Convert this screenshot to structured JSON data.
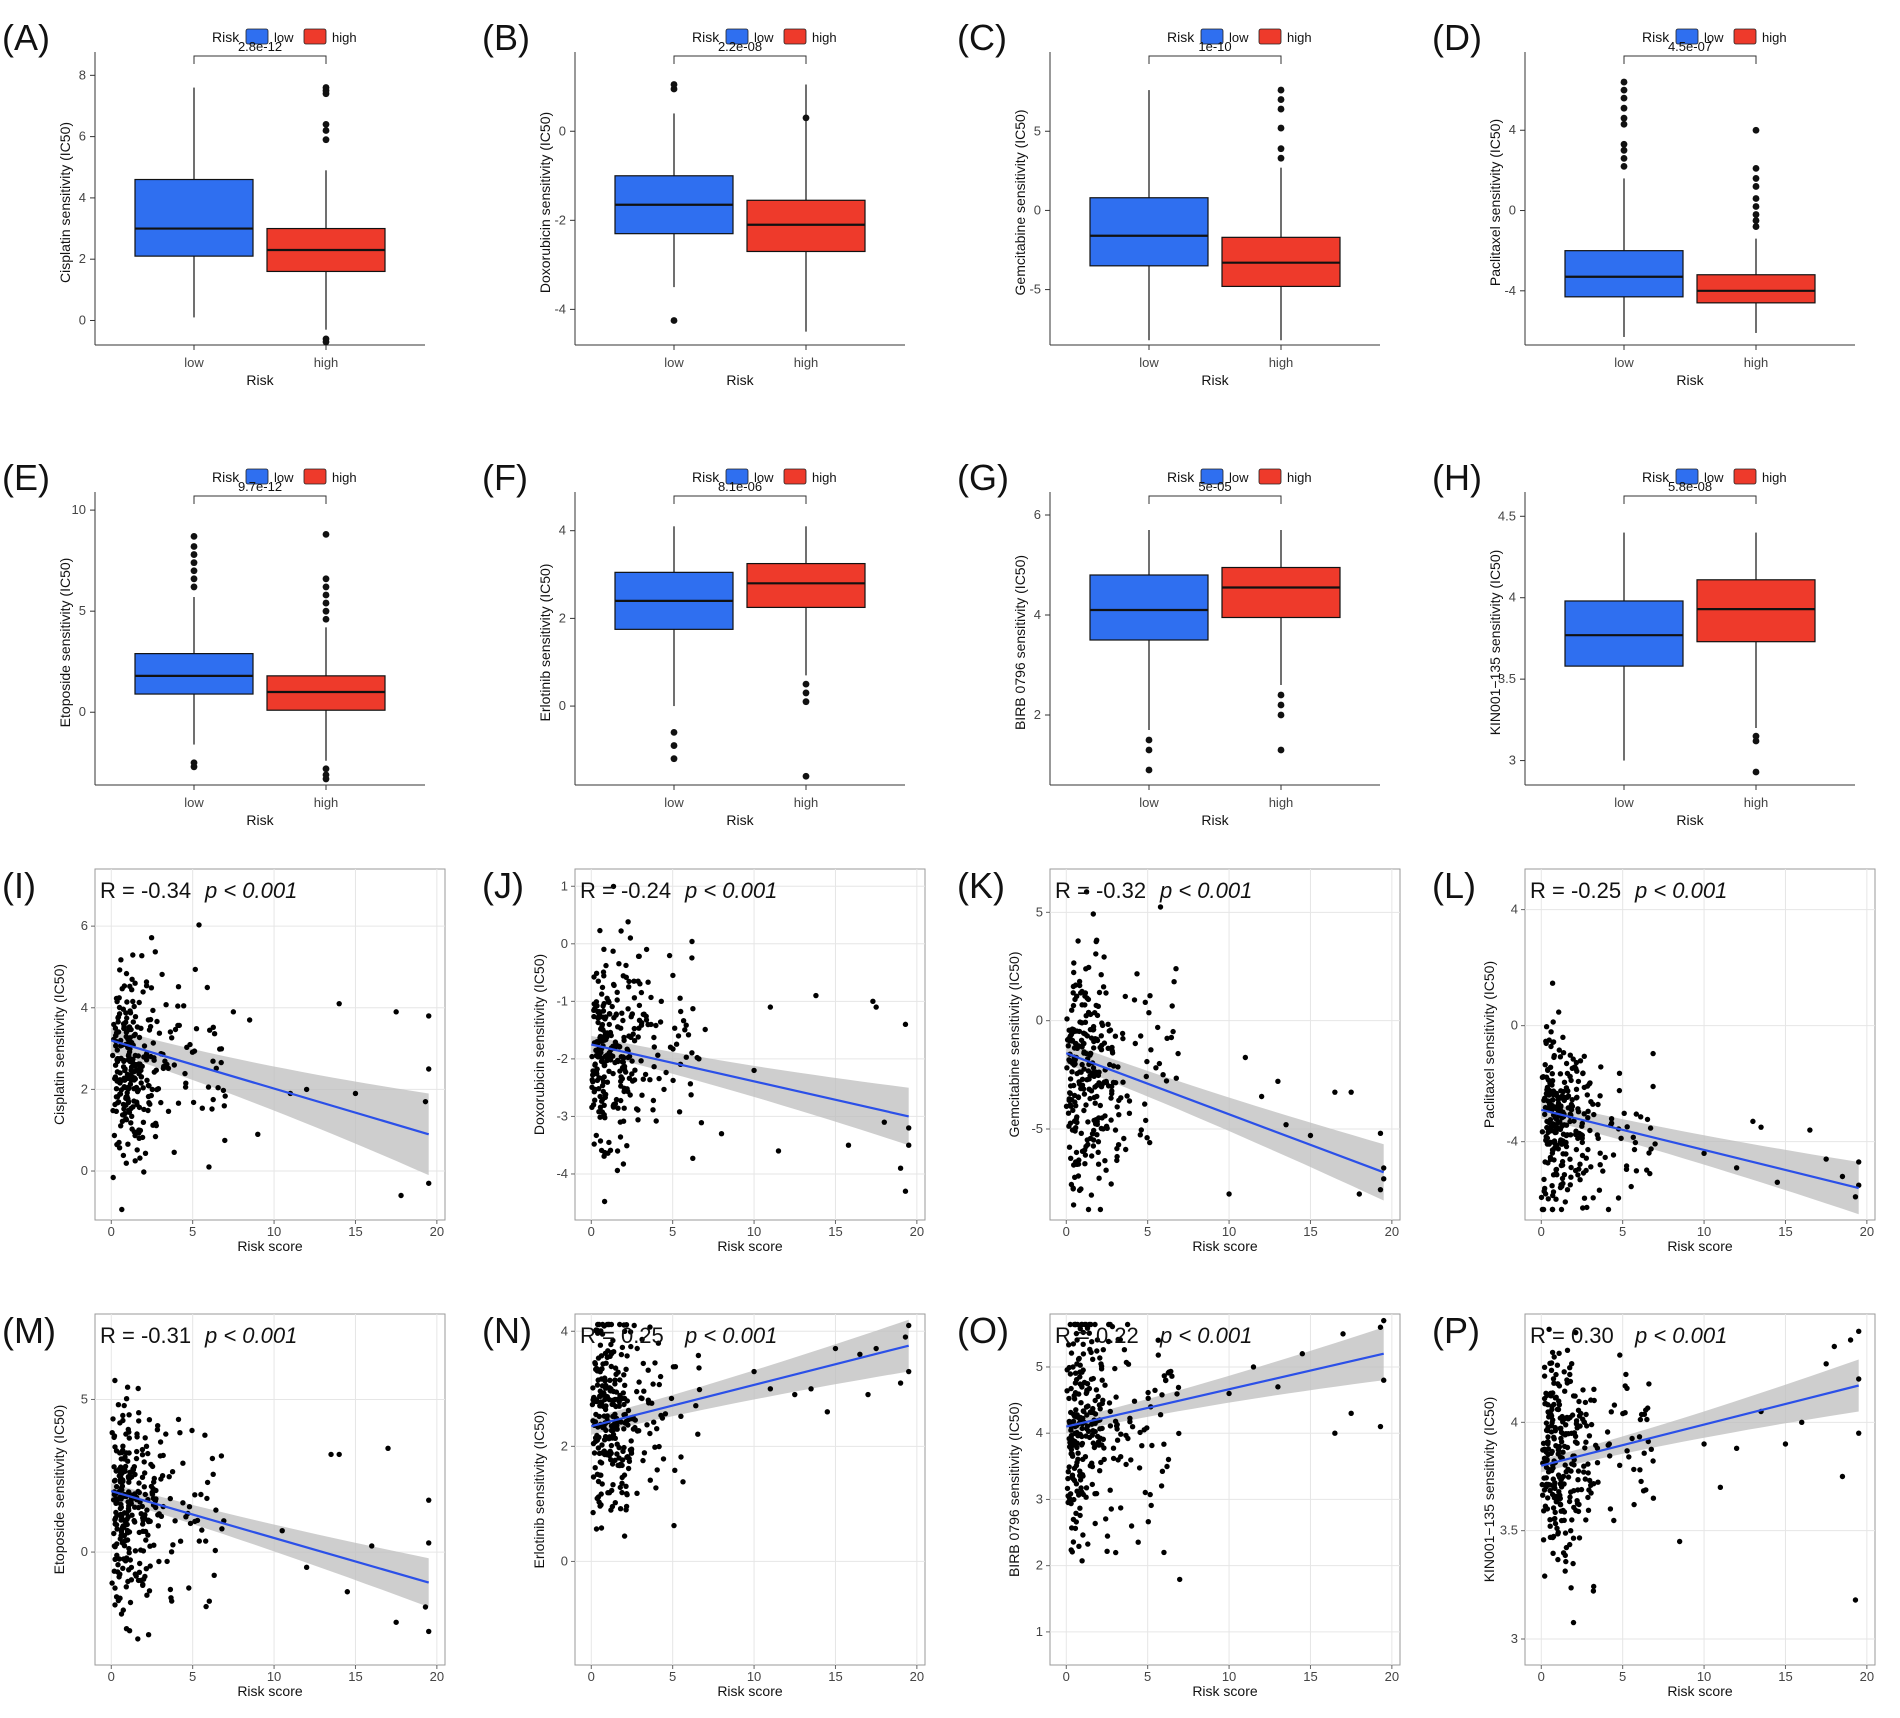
{
  "colors": {
    "low": "#2f6ff0",
    "high": "#ee3a2b",
    "regression_line": "#2b50e8",
    "confidence_band": "#bdbdbd",
    "point": "#000000",
    "grid": "#e6e6e6"
  },
  "chart_data": [
    {
      "id": "A",
      "label": "(A)",
      "type": "box",
      "legend": {
        "title": "Risk",
        "low": "low",
        "high": "high"
      },
      "xlabel": "Risk",
      "ylabel": "Cisplatin sensitivity (IC50)",
      "categories": [
        "low",
        "high"
      ],
      "ylim": [
        -0.8,
        8.5
      ],
      "yticks": [
        0,
        2,
        4,
        6,
        8
      ],
      "pvalue": "2.8e-12",
      "boxes": [
        {
          "name": "low",
          "q1": 2.1,
          "median": 3.0,
          "q3": 4.6,
          "whisker_low": 0.1,
          "whisker_high": 7.6,
          "outliers": []
        },
        {
          "name": "high",
          "q1": 1.6,
          "median": 2.3,
          "q3": 3.0,
          "whisker_low": -0.3,
          "whisker_high": 4.9,
          "outliers": [
            5.9,
            6.2,
            6.4,
            7.4,
            7.5,
            7.6,
            -0.6,
            -0.7
          ]
        }
      ]
    },
    {
      "id": "B",
      "label": "(B)",
      "type": "box",
      "legend": {
        "title": "Risk",
        "low": "low",
        "high": "high"
      },
      "xlabel": "Risk",
      "ylabel": "Doxorubicin sensitivity (IC50)",
      "categories": [
        "low",
        "high"
      ],
      "ylim": [
        -4.8,
        1.6
      ],
      "yticks": [
        -4,
        -2,
        0
      ],
      "pvalue": "2.2e-08",
      "boxes": [
        {
          "name": "low",
          "q1": -2.3,
          "median": -1.65,
          "q3": -1.0,
          "whisker_low": -3.5,
          "whisker_high": 0.4,
          "outliers": [
            0.95,
            1.05,
            -4.25
          ]
        },
        {
          "name": "high",
          "q1": -2.7,
          "median": -2.1,
          "q3": -1.55,
          "whisker_low": -4.5,
          "whisker_high": 1.05,
          "outliers": [
            0.3
          ]
        }
      ]
    },
    {
      "id": "C",
      "label": "(C)",
      "type": "box",
      "legend": {
        "title": "Risk",
        "low": "low",
        "high": "high"
      },
      "xlabel": "Risk",
      "ylabel": "Gemcitabine sensitivity (IC50)",
      "categories": [
        "low",
        "high"
      ],
      "ylim": [
        -8.5,
        9.5
      ],
      "yticks": [
        -5,
        0,
        5
      ],
      "pvalue": "1e-10",
      "boxes": [
        {
          "name": "low",
          "q1": -3.5,
          "median": -1.6,
          "q3": 0.8,
          "whisker_low": -8.2,
          "whisker_high": 7.6,
          "outliers": []
        },
        {
          "name": "high",
          "q1": -4.8,
          "median": -3.3,
          "q3": -1.7,
          "whisker_low": -8.2,
          "whisker_high": 2.7,
          "outliers": [
            3.3,
            3.9,
            5.2,
            6.4,
            7.0,
            7.6
          ]
        }
      ]
    },
    {
      "id": "D",
      "label": "(D)",
      "type": "box",
      "legend": {
        "title": "Risk",
        "low": "low",
        "high": "high"
      },
      "xlabel": "Risk",
      "ylabel": "Paclitaxel sensitivity (IC50)",
      "categories": [
        "low",
        "high"
      ],
      "ylim": [
        -6.7,
        7.5
      ],
      "yticks": [
        -4,
        0,
        4
      ],
      "pvalue": "4.5e-07",
      "boxes": [
        {
          "name": "low",
          "q1": -4.3,
          "median": -3.3,
          "q3": -2.0,
          "whisker_low": -6.3,
          "whisker_high": 1.6,
          "outliers": [
            2.2,
            2.6,
            3.0,
            3.3,
            4.3,
            4.6,
            5.1,
            5.6,
            6.0,
            6.4
          ]
        },
        {
          "name": "high",
          "q1": -4.6,
          "median": -4.0,
          "q3": -3.2,
          "whisker_low": -6.1,
          "whisker_high": -1.4,
          "outliers": [
            -0.8,
            -0.5,
            -0.2,
            0.2,
            0.6,
            1.2,
            1.6,
            2.1,
            4.0
          ]
        }
      ]
    },
    {
      "id": "E",
      "label": "(E)",
      "type": "box",
      "legend": {
        "title": "Risk",
        "low": "low",
        "high": "high"
      },
      "xlabel": "Risk",
      "ylabel": "Etoposide sensitivity (IC50)",
      "categories": [
        "low",
        "high"
      ],
      "ylim": [
        -3.6,
        10.5
      ],
      "yticks": [
        0,
        5,
        10
      ],
      "pvalue": "9.7e-12",
      "boxes": [
        {
          "name": "low",
          "q1": 0.9,
          "median": 1.8,
          "q3": 2.9,
          "whisker_low": -1.6,
          "whisker_high": 5.7,
          "outliers": [
            6.2,
            6.6,
            7.0,
            7.4,
            7.8,
            8.2,
            8.7,
            -2.5,
            -2.7
          ]
        },
        {
          "name": "high",
          "q1": 0.1,
          "median": 1.0,
          "q3": 1.8,
          "whisker_low": -2.4,
          "whisker_high": 4.2,
          "outliers": [
            4.6,
            5.0,
            5.4,
            5.8,
            6.2,
            6.6,
            8.8,
            -2.8,
            -3.1,
            -3.3
          ]
        }
      ]
    },
    {
      "id": "F",
      "label": "(F)",
      "type": "box",
      "legend": {
        "title": "Risk",
        "low": "low",
        "high": "high"
      },
      "xlabel": "Risk",
      "ylabel": "Erlotinib sensitivity (IC50)",
      "categories": [
        "low",
        "high"
      ],
      "ylim": [
        -1.8,
        4.7
      ],
      "yticks": [
        0,
        2,
        4
      ],
      "pvalue": "8.1e-06",
      "boxes": [
        {
          "name": "low",
          "q1": 1.75,
          "median": 2.4,
          "q3": 3.05,
          "whisker_low": 0.0,
          "whisker_high": 4.1,
          "outliers": [
            -0.6,
            -0.9,
            -1.2
          ]
        },
        {
          "name": "high",
          "q1": 2.25,
          "median": 2.8,
          "q3": 3.25,
          "whisker_low": 0.7,
          "whisker_high": 4.1,
          "outliers": [
            0.5,
            0.3,
            0.1,
            -1.6
          ]
        }
      ]
    },
    {
      "id": "G",
      "label": "(G)",
      "type": "box",
      "legend": {
        "title": "Risk",
        "low": "low",
        "high": "high"
      },
      "xlabel": "Risk",
      "ylabel": "BIRB 0796 sensitivity (IC50)",
      "categories": [
        "low",
        "high"
      ],
      "ylim": [
        0.6,
        6.3
      ],
      "yticks": [
        2,
        4,
        6
      ],
      "pvalue": "5e-05",
      "boxes": [
        {
          "name": "low",
          "q1": 3.5,
          "median": 4.1,
          "q3": 4.8,
          "whisker_low": 1.7,
          "whisker_high": 5.7,
          "outliers": [
            1.5,
            1.3,
            0.9
          ]
        },
        {
          "name": "high",
          "q1": 3.95,
          "median": 4.55,
          "q3": 4.95,
          "whisker_low": 2.6,
          "whisker_high": 5.7,
          "outliers": [
            2.4,
            2.2,
            2.0,
            1.3
          ]
        }
      ]
    },
    {
      "id": "H",
      "label": "(H)",
      "type": "box",
      "legend": {
        "title": "Risk",
        "low": "low",
        "high": "high"
      },
      "xlabel": "Risk",
      "ylabel": "KIN001−135 sensitivity (IC50)",
      "categories": [
        "low",
        "high"
      ],
      "ylim": [
        2.85,
        4.6
      ],
      "yticks": [
        3.0,
        3.5,
        4.0,
        4.5
      ],
      "pvalue": "5.8e-08",
      "boxes": [
        {
          "name": "low",
          "q1": 3.58,
          "median": 3.77,
          "q3": 3.98,
          "whisker_low": 3.0,
          "whisker_high": 4.4,
          "outliers": []
        },
        {
          "name": "high",
          "q1": 3.73,
          "median": 3.93,
          "q3": 4.11,
          "whisker_low": 3.2,
          "whisker_high": 4.4,
          "outliers": [
            3.15,
            3.12,
            2.93
          ]
        }
      ]
    },
    {
      "id": "I",
      "label": "(I)",
      "type": "scatter",
      "r_text": "R = -0.34",
      "p_text": "p < 0.001",
      "xlabel": "Risk score",
      "ylabel": "Cisplatin sensitivity (IC50)",
      "xlim": [
        -1,
        20.5
      ],
      "ylim": [
        -1.2,
        7.4
      ],
      "xticks": [
        0,
        5,
        10,
        15,
        20
      ],
      "yticks": [
        0,
        2,
        4,
        6
      ],
      "line": {
        "x": [
          0,
          19.5
        ],
        "y": [
          3.2,
          0.9
        ]
      },
      "ci_start": 0.3,
      "ci_end": 1.0,
      "cloud": {
        "y_center": 2.6,
        "y_sd": 1.1,
        "n": 300
      },
      "tail": [
        [
          7.5,
          3.9
        ],
        [
          8.5,
          3.7
        ],
        [
          14,
          4.1
        ],
        [
          17.5,
          3.9
        ],
        [
          19.5,
          3.8
        ],
        [
          19.5,
          2.5
        ],
        [
          19.3,
          1.7
        ],
        [
          19.5,
          -0.3
        ],
        [
          17.8,
          -0.6
        ],
        [
          11,
          1.9
        ],
        [
          9,
          0.9
        ],
        [
          15,
          1.9
        ],
        [
          12,
          2.0
        ],
        [
          6,
          0.1
        ]
      ]
    },
    {
      "id": "J",
      "label": "(J)",
      "type": "scatter",
      "r_text": "R = -0.24",
      "p_text": "p < 0.001",
      "xlabel": "Risk score",
      "ylabel": "Doxorubicin sensitivity (IC50)",
      "xlim": [
        -1,
        20.5
      ],
      "ylim": [
        -4.8,
        1.3
      ],
      "xticks": [
        0,
        5,
        10,
        15,
        20
      ],
      "yticks": [
        -4,
        -3,
        -2,
        -1,
        0,
        1
      ],
      "line": {
        "x": [
          0,
          19.5
        ],
        "y": [
          -1.75,
          -3.0
        ]
      },
      "ci_start": 0.15,
      "ci_end": 0.5,
      "cloud": {
        "y_center": -1.9,
        "y_sd": 0.85,
        "n": 300
      },
      "tail": [
        [
          17.3,
          -1.0
        ],
        [
          17.5,
          -1.1
        ],
        [
          19.3,
          -1.4
        ],
        [
          13.8,
          -0.9
        ],
        [
          11,
          -1.1
        ],
        [
          18,
          -3.1
        ],
        [
          19.5,
          -3.2
        ],
        [
          19.5,
          -3.5
        ],
        [
          19,
          -3.9
        ],
        [
          19.3,
          -4.3
        ],
        [
          15.8,
          -3.5
        ],
        [
          8,
          -3.3
        ],
        [
          10,
          -2.2
        ],
        [
          11.5,
          -3.6
        ]
      ]
    },
    {
      "id": "K",
      "label": "(K)",
      "type": "scatter",
      "r_text": "R = -0.32",
      "p_text": "p < 0.001",
      "xlabel": "Risk score",
      "ylabel": "Gemcitabine sensitivity (IC50)",
      "xlim": [
        -1,
        20.5
      ],
      "ylim": [
        -9.2,
        7.0
      ],
      "xticks": [
        0,
        5,
        10,
        15,
        20
      ],
      "yticks": [
        -5,
        0,
        5
      ],
      "line": {
        "x": [
          0,
          19.5
        ],
        "y": [
          -1.5,
          -7.0
        ]
      },
      "ci_start": 0.5,
      "ci_end": 1.3,
      "cloud": {
        "y_center": -2.3,
        "y_sd": 2.5,
        "n": 300
      },
      "tail": [
        [
          16.5,
          -3.3
        ],
        [
          17.5,
          -3.3
        ],
        [
          19.3,
          -5.2
        ],
        [
          19.5,
          -6.8
        ],
        [
          19.5,
          -7.3
        ],
        [
          19.3,
          -7.8
        ],
        [
          18,
          -8.0
        ],
        [
          13,
          -2.8
        ],
        [
          11,
          -1.7
        ],
        [
          15,
          -5.3
        ],
        [
          13.5,
          -4.8
        ],
        [
          10,
          -8.0
        ],
        [
          12,
          -3.5
        ]
      ]
    },
    {
      "id": "L",
      "label": "(L)",
      "type": "scatter",
      "r_text": "R = -0.25",
      "p_text": "p < 0.001",
      "xlabel": "Risk score",
      "ylabel": "Paclitaxel sensitivity (IC50)",
      "xlim": [
        -1,
        20.5
      ],
      "ylim": [
        -6.7,
        5.4
      ],
      "xticks": [
        0,
        5,
        10,
        15,
        20
      ],
      "yticks": [
        -4,
        0,
        4
      ],
      "line": {
        "x": [
          0,
          19.5
        ],
        "y": [
          -2.9,
          -5.6
        ]
      },
      "ci_start": 0.3,
      "ci_end": 0.9,
      "cloud": {
        "y_center": -3.3,
        "y_sd": 1.5,
        "n": 300
      },
      "tail": [
        [
          13,
          -3.3
        ],
        [
          13.5,
          -3.5
        ],
        [
          17.5,
          -4.6
        ],
        [
          18.5,
          -5.2
        ],
        [
          19.5,
          -4.7
        ],
        [
          19.5,
          -5.5
        ],
        [
          19.3,
          -5.9
        ],
        [
          14.5,
          -5.4
        ],
        [
          10,
          -4.4
        ],
        [
          12,
          -4.9
        ],
        [
          16.5,
          -3.6
        ]
      ]
    },
    {
      "id": "M",
      "label": "(M)",
      "type": "scatter",
      "r_text": "R = -0.31",
      "p_text": "p < 0.001",
      "xlabel": "Risk score",
      "ylabel": "Etoposide sensitivity (IC50)",
      "xlim": [
        -1,
        20.5
      ],
      "ylim": [
        -3.7,
        7.8
      ],
      "xticks": [
        0,
        5,
        10,
        15,
        20
      ],
      "yticks": [
        0,
        5
      ],
      "line": {
        "x": [
          0,
          19.5
        ],
        "y": [
          2.0,
          -1.0
        ]
      },
      "ci_start": 0.25,
      "ci_end": 0.8,
      "cloud": {
        "y_center": 1.4,
        "y_sd": 1.5,
        "n": 300
      },
      "tail": [
        [
          13.5,
          3.2
        ],
        [
          14,
          3.2
        ],
        [
          17,
          3.4
        ],
        [
          19.5,
          1.7
        ],
        [
          19.5,
          0.3
        ],
        [
          19.3,
          -1.8
        ],
        [
          19.5,
          -2.6
        ],
        [
          17.5,
          -2.3
        ],
        [
          14.5,
          -1.3
        ],
        [
          16,
          0.2
        ],
        [
          12,
          -0.5
        ],
        [
          10.5,
          0.7
        ]
      ]
    },
    {
      "id": "N",
      "label": "(N)",
      "type": "scatter",
      "r_text": "R = 0.25",
      "p_text": "p < 0.001",
      "xlabel": "Risk score",
      "ylabel": "Erlotinib sensitivity (IC50)",
      "xlim": [
        -1,
        20.5
      ],
      "ylim": [
        -1.8,
        4.3
      ],
      "xticks": [
        0,
        5,
        10,
        15,
        20
      ],
      "yticks": [
        0,
        2,
        4
      ],
      "line": {
        "x": [
          0,
          19.5
        ],
        "y": [
          2.35,
          3.75
        ]
      },
      "ci_start": 0.15,
      "ci_end": 0.45,
      "cloud": {
        "y_center": 2.5,
        "y_sd": 0.9,
        "n": 300
      },
      "tail": [
        [
          19.5,
          4.1
        ],
        [
          19.3,
          3.9
        ],
        [
          19.5,
          3.3
        ],
        [
          19,
          3.1
        ],
        [
          17.5,
          3.7
        ],
        [
          15,
          3.7
        ],
        [
          16.5,
          3.6
        ],
        [
          13.5,
          3.0
        ],
        [
          12.5,
          2.9
        ],
        [
          14.5,
          2.6
        ],
        [
          17,
          2.9
        ],
        [
          10,
          3.3
        ],
        [
          11,
          3.0
        ]
      ]
    },
    {
      "id": "O",
      "label": "(O)",
      "type": "scatter",
      "r_text": "R = 0.22",
      "p_text": "p < 0.001",
      "xlabel": "Risk score",
      "ylabel": "BIRB 0796 sensitivity (IC50)",
      "xlim": [
        -1,
        20.5
      ],
      "ylim": [
        0.5,
        5.8
      ],
      "xticks": [
        0,
        5,
        10,
        15,
        20
      ],
      "yticks": [
        1,
        2,
        3,
        4,
        5
      ],
      "line": {
        "x": [
          0,
          19.5
        ],
        "y": [
          4.1,
          5.2
        ]
      },
      "ci_start": 0.1,
      "ci_end": 0.4,
      "cloud": {
        "y_center": 4.1,
        "y_sd": 0.9,
        "n": 300
      },
      "tail": [
        [
          19.5,
          5.7
        ],
        [
          19.3,
          5.6
        ],
        [
          17,
          5.5
        ],
        [
          14.5,
          5.2
        ],
        [
          19.5,
          4.8
        ],
        [
          19.3,
          4.1
        ],
        [
          17.5,
          4.3
        ],
        [
          16.5,
          4.0
        ],
        [
          11.5,
          5.0
        ],
        [
          13,
          4.7
        ],
        [
          10,
          4.6
        ],
        [
          6,
          2.2
        ]
      ]
    },
    {
      "id": "P",
      "label": "(P)",
      "type": "scatter",
      "r_text": "R = 0.30",
      "p_text": "p < 0.001",
      "xlabel": "Risk score",
      "ylabel": "KIN001−135 sensitivity (IC50)",
      "xlim": [
        -1,
        20.5
      ],
      "ylim": [
        2.88,
        4.5
      ],
      "xticks": [
        0,
        5,
        10,
        15,
        20
      ],
      "yticks": [
        3.0,
        3.5,
        4.0
      ],
      "line": {
        "x": [
          0,
          19.5
        ],
        "y": [
          3.8,
          4.17
        ]
      },
      "ci_start": 0.03,
      "ci_end": 0.12,
      "cloud": {
        "y_center": 3.85,
        "y_sd": 0.25,
        "n": 300
      },
      "tail": [
        [
          19.5,
          4.42
        ],
        [
          19,
          4.38
        ],
        [
          19.5,
          4.2
        ],
        [
          18,
          4.35
        ],
        [
          17.5,
          4.27
        ],
        [
          19.5,
          3.95
        ],
        [
          19.3,
          3.18
        ],
        [
          16,
          4.0
        ],
        [
          15,
          3.9
        ],
        [
          18.5,
          3.75
        ],
        [
          12,
          3.88
        ],
        [
          10,
          3.9
        ],
        [
          13.5,
          4.05
        ],
        [
          8.5,
          3.45
        ],
        [
          11,
          3.7
        ]
      ]
    }
  ]
}
